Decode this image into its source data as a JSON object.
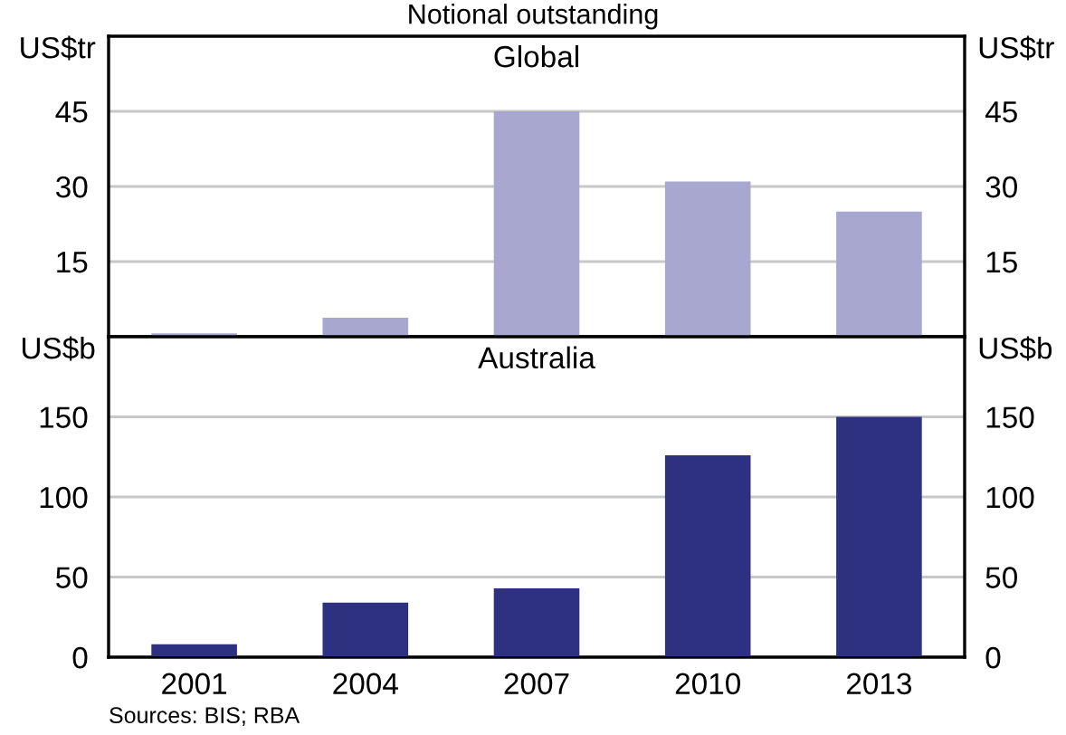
{
  "chart_data": [
    {
      "type": "bar",
      "title": "Global",
      "annotations": [
        "Notional outstanding"
      ],
      "ylabel": "US$tr",
      "y2label": "US$tr",
      "categories": [
        "2001",
        "2004",
        "2007",
        "2010",
        "2013"
      ],
      "values": [
        0.7,
        3.8,
        45,
        31,
        25
      ],
      "color": "#a7a7cf",
      "ylim": [
        0,
        60
      ],
      "yticks": [
        15,
        30,
        45
      ],
      "y2lim": [
        0,
        60
      ],
      "y2ticks": [
        15,
        30,
        45
      ],
      "grid": "y",
      "tick_labels": "y"
    },
    {
      "type": "bar",
      "title": "Australia",
      "annotations": [
        "Sources: BIS; RBA"
      ],
      "ylabel": "US$b",
      "y2label": "US$b",
      "categories": [
        "2001",
        "2004",
        "2007",
        "2010",
        "2013"
      ],
      "values": [
        8,
        34,
        43,
        126,
        150
      ],
      "color": "#2e3180",
      "ylim": [
        0,
        200
      ],
      "yticks": [
        0,
        50,
        100,
        150
      ],
      "y2lim": [
        0,
        200
      ],
      "y2ticks": [
        0,
        50,
        100,
        150
      ],
      "grid": "y"
    }
  ]
}
